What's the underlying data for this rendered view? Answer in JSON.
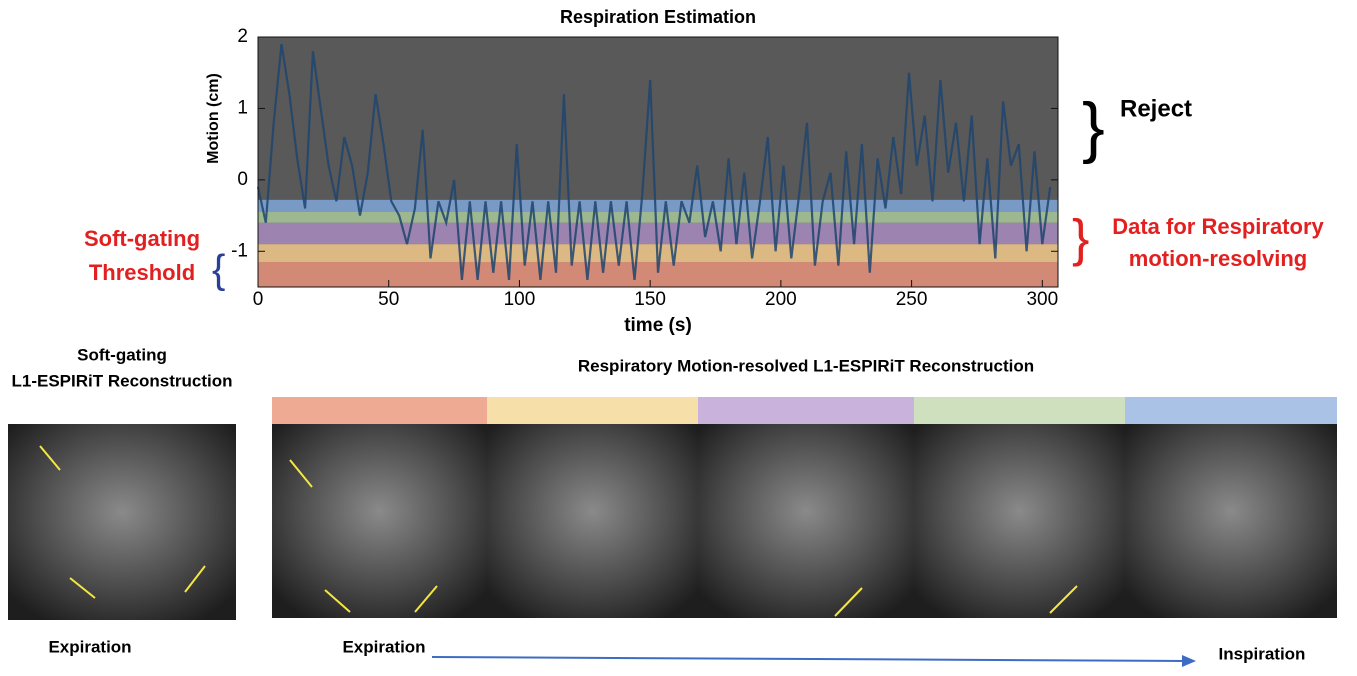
{
  "chart_data": {
    "type": "line",
    "title": "Respiration Estimation",
    "xlabel": "time (s)",
    "ylabel": "Motion (cm)",
    "xlim": [
      0,
      306
    ],
    "ylim": [
      -1.5,
      2
    ],
    "xticks": [
      0,
      50,
      100,
      150,
      200,
      250,
      300
    ],
    "yticks": [
      -1,
      0,
      1,
      2
    ],
    "background": "#595959",
    "bands": [
      {
        "color": "#e8927a",
        "from": -1.5,
        "to": -1.15
      },
      {
        "color": "#f3c98a",
        "from": -1.15,
        "to": -0.9
      },
      {
        "color": "#a88bc0",
        "from": -0.9,
        "to": -0.6
      },
      {
        "color": "#a9c99a",
        "from": -0.6,
        "to": -0.45
      },
      {
        "color": "#7fa6d8",
        "from": -0.45,
        "to": -0.28
      }
    ],
    "series": [
      {
        "color": "#1f456f",
        "x": [
          0,
          3,
          6,
          9,
          12,
          15,
          18,
          21,
          24,
          27,
          30,
          33,
          36,
          39,
          42,
          45,
          48,
          51,
          54,
          57,
          60,
          63,
          66,
          69,
          72,
          75,
          78,
          81,
          84,
          87,
          90,
          93,
          96,
          99,
          102,
          105,
          108,
          111,
          114,
          117,
          120,
          123,
          126,
          129,
          132,
          135,
          138,
          141,
          144,
          147,
          150,
          153,
          156,
          159,
          162,
          165,
          168,
          171,
          174,
          177,
          180,
          183,
          186,
          189,
          192,
          195,
          198,
          201,
          204,
          207,
          210,
          213,
          216,
          219,
          222,
          225,
          228,
          231,
          234,
          237,
          240,
          243,
          246,
          249,
          252,
          255,
          258,
          261,
          264,
          267,
          270,
          273,
          276,
          279,
          282,
          285,
          288,
          291,
          294,
          297,
          300,
          303
        ],
        "values": [
          -0.1,
          -0.6,
          0.8,
          1.9,
          1.2,
          0.3,
          -0.4,
          1.8,
          1.0,
          0.2,
          -0.3,
          0.6,
          0.2,
          -0.5,
          0.1,
          1.2,
          0.5,
          -0.3,
          -0.5,
          -0.9,
          -0.4,
          0.7,
          -1.1,
          -0.3,
          -0.6,
          0.0,
          -1.4,
          -0.3,
          -1.4,
          -0.3,
          -1.3,
          -0.3,
          -1.4,
          0.5,
          -1.2,
          -0.3,
          -1.4,
          -0.3,
          -1.3,
          1.2,
          -1.2,
          -0.3,
          -1.4,
          -0.3,
          -1.3,
          -0.3,
          -1.2,
          -0.3,
          -1.4,
          -0.2,
          1.4,
          -1.3,
          -0.3,
          -1.2,
          -0.3,
          -0.6,
          0.2,
          -0.8,
          -0.3,
          -1.0,
          0.3,
          -0.9,
          0.1,
          -1.1,
          -0.3,
          0.6,
          -1.0,
          0.2,
          -1.1,
          -0.2,
          0.8,
          -1.2,
          -0.3,
          0.1,
          -1.2,
          0.4,
          -0.9,
          0.5,
          -1.3,
          0.3,
          -0.4,
          0.6,
          -0.2,
          1.5,
          0.2,
          0.9,
          -0.3,
          1.4,
          0.1,
          0.8,
          -0.3,
          0.9,
          -0.9,
          0.3,
          -1.1,
          1.1,
          0.2,
          0.5,
          -1.0,
          0.4,
          -0.9,
          -0.1
        ]
      }
    ]
  },
  "annotations": {
    "reject": "Reject",
    "data_label": [
      "Data for Respiratory",
      "motion-resolving"
    ],
    "threshold": [
      "Soft-gating",
      "Threshold"
    ]
  },
  "panels": {
    "left_title": [
      "Soft-gating",
      "L1-ESPIRiT Reconstruction"
    ],
    "right_title": "Respiratory Motion-resolved L1-ESPIRiT Reconstruction",
    "labels": [
      "Expiration",
      "Expiration",
      "Inspiration"
    ]
  }
}
